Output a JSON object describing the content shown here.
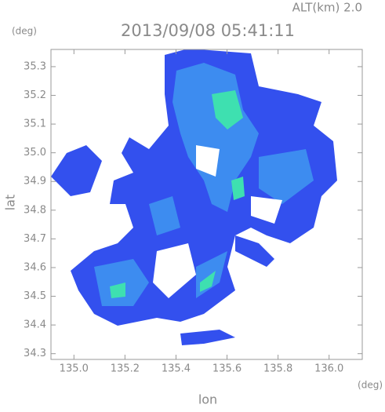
{
  "chart_data": {
    "type": "radar-map",
    "altitude_label": "ALT(km) 2.0",
    "title": "2013/09/08 05:41:11",
    "y_unit": "(deg)",
    "x_unit": "(deg)",
    "ylabel": "lat",
    "xlabel": "lon",
    "xlim": [
      134.91,
      136.13
    ],
    "ylim": [
      34.28,
      35.36
    ],
    "xticks": [
      {
        "value": 135,
        "label": "135.0"
      },
      135.2,
      135.4,
      135.6,
      135.8,
      {
        "value": 136,
        "label": "136.0"
      }
    ],
    "yticks": [
      34.3,
      34.4,
      34.5,
      34.6,
      34.7,
      34.8,
      34.9,
      {
        "value": 35,
        "label": "35.0"
      },
      35.1,
      35.2,
      35.3
    ]
  }
}
